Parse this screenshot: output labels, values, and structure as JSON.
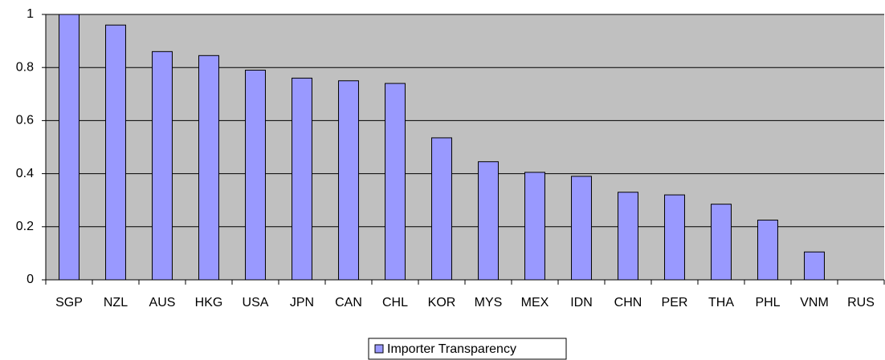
{
  "chart_data": {
    "type": "bar",
    "categories": [
      "SGP",
      "NZL",
      "AUS",
      "HKG",
      "USA",
      "JPN",
      "CAN",
      "CHL",
      "KOR",
      "MYS",
      "MEX",
      "IDN",
      "CHN",
      "PER",
      "THA",
      "PHL",
      "VNM",
      "RUS"
    ],
    "series": [
      {
        "name": "Importer Transparency",
        "color": "#9999ff",
        "values": [
          1.0,
          0.96,
          0.86,
          0.845,
          0.79,
          0.76,
          0.75,
          0.74,
          0.535,
          0.445,
          0.405,
          0.39,
          0.33,
          0.32,
          0.285,
          0.225,
          0.105,
          0
        ]
      }
    ],
    "ylim": [
      0,
      1
    ],
    "yticks": [
      0,
      0.2,
      0.4,
      0.6,
      0.8,
      1
    ],
    "grid": true,
    "legend": "bottom"
  }
}
